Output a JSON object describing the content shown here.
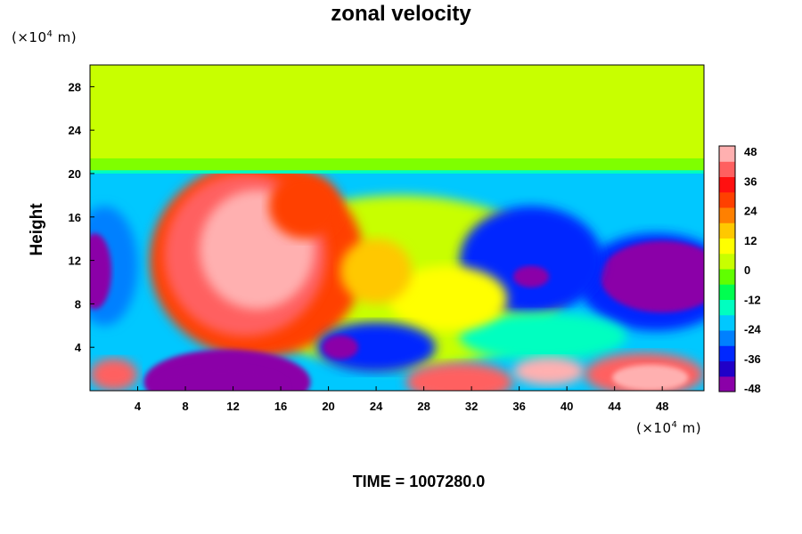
{
  "chart_data": {
    "type": "heatmap",
    "title": "zonal velocity",
    "ylabel": "Height",
    "xlabel": "",
    "x_unit": {
      "pre": "(×10",
      "exp": "4",
      "post": " m)"
    },
    "y_unit": {
      "pre": "(×10",
      "exp": "4",
      "post": " m)"
    },
    "footer": "TIME = 1007280.0",
    "xlim": [
      0,
      51.5
    ],
    "ylim": [
      0,
      30
    ],
    "x_ticks": [
      4,
      8,
      12,
      16,
      20,
      24,
      28,
      32,
      36,
      40,
      44,
      48
    ],
    "y_ticks": [
      4,
      8,
      12,
      16,
      20,
      24,
      28
    ],
    "colorbar": {
      "range": [
        -48,
        48
      ],
      "labels": [
        48,
        36,
        24,
        12,
        0,
        -12,
        -24,
        -36,
        -48
      ],
      "colors": [
        "#8b00a8",
        "#2000c8",
        "#0028ff",
        "#0080ff",
        "#00c8ff",
        "#00ffc0",
        "#00ff50",
        "#60ff00",
        "#c8ff00",
        "#ffff00",
        "#ffc800",
        "#ff8000",
        "#ff4000",
        "#ff1010",
        "#ff6060",
        "#ffb0b0"
      ]
    },
    "regions": [
      {
        "label": "upper layer near zero",
        "x": [
          0,
          51.5
        ],
        "y": [
          20,
          30
        ],
        "value": 0
      },
      {
        "label": "western positive jet",
        "x": [
          8,
          20
        ],
        "y": [
          7,
          20
        ],
        "value": 44
      },
      {
        "label": "western negative core",
        "x": [
          0,
          3
        ],
        "y": [
          8,
          16
        ],
        "value": -40
      },
      {
        "label": "eastern negative core",
        "x": [
          42,
          51.5
        ],
        "y": [
          7,
          13
        ],
        "value": -48
      },
      {
        "label": "near-surface negative core",
        "x": [
          6,
          16
        ],
        "y": [
          0,
          2
        ],
        "value": -48
      },
      {
        "label": "near-surface positive cells",
        "x": [
          30,
          51.5
        ],
        "y": [
          0,
          3
        ],
        "value": 40
      }
    ]
  }
}
